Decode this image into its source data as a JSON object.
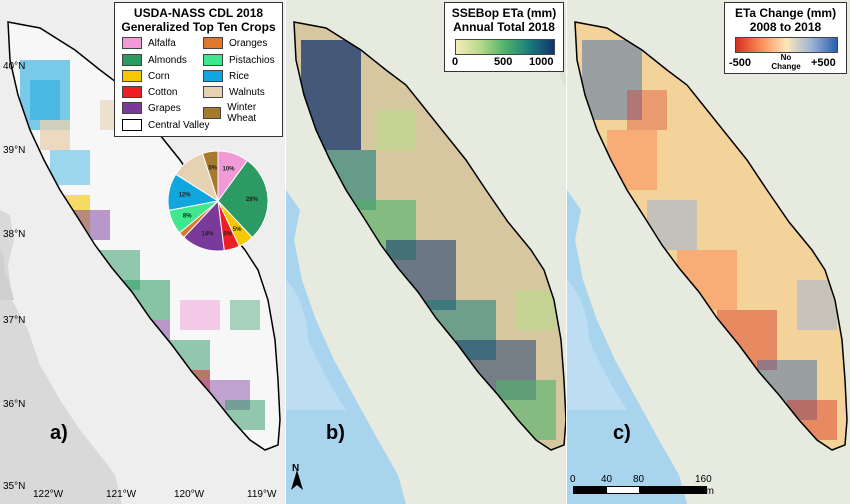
{
  "panels": {
    "a": {
      "label": "a)"
    },
    "b": {
      "label": "b)"
    },
    "c": {
      "label": "c)"
    }
  },
  "latitude_labels": [
    "40°N",
    "39°N",
    "38°N",
    "37°N",
    "36°N",
    "35°N"
  ],
  "longitude_labels": [
    "122°W",
    "121°W",
    "120°W",
    "119°W"
  ],
  "crop_legend": {
    "title_line1": "USDA-NASS CDL 2018",
    "title_line2": "Generalized Top Ten Crops",
    "items": [
      {
        "name": "Alfalfa",
        "color": "#f29ad8"
      },
      {
        "name": "Oranges",
        "color": "#e0772c"
      },
      {
        "name": "Almonds",
        "color": "#2c9a63"
      },
      {
        "name": "Pistachios",
        "color": "#3fe88f"
      },
      {
        "name": "Corn",
        "color": "#f5c800"
      },
      {
        "name": "Rice",
        "color": "#12a6de"
      },
      {
        "name": "Cotton",
        "color": "#ed1f24"
      },
      {
        "name": "Walnuts",
        "color": "#e7d1b3"
      },
      {
        "name": "Grapes",
        "color": "#7a3a99"
      },
      {
        "name": "Winter Wheat",
        "color": "#a67a2d"
      }
    ],
    "boundary_label": "Central Valley"
  },
  "pie_slices": [
    {
      "crop": "Alfalfa",
      "percent": 10,
      "label": "10%",
      "color": "#f29ad8"
    },
    {
      "crop": "Almonds",
      "percent": 28,
      "label": "28%",
      "color": "#2c9a63"
    },
    {
      "crop": "Corn",
      "percent": 5,
      "label": "5%",
      "color": "#f5c800"
    },
    {
      "crop": "Cotton",
      "percent": 5,
      "label": "5%",
      "color": "#ed1f24"
    },
    {
      "crop": "Grapes",
      "percent": 14,
      "label": "14%",
      "color": "#7a3a99"
    },
    {
      "crop": "Oranges",
      "percent": 2,
      "label": "",
      "color": "#e0772c"
    },
    {
      "crop": "Pistachios",
      "percent": 8,
      "label": "8%",
      "color": "#3fe88f"
    },
    {
      "crop": "Rice",
      "percent": 12,
      "label": "12%",
      "color": "#12a6de"
    },
    {
      "crop": "Walnuts",
      "percent": 11,
      "label": "",
      "color": "#e7d1b3"
    },
    {
      "crop": "Winter Wheat",
      "percent": 5,
      "label": "5%",
      "color": "#a67a2d"
    }
  ],
  "eta_legend": {
    "title_line1": "SSEBop ETa (mm)",
    "title_line2": "Annual Total 2018",
    "tick_min": "0",
    "tick_mid": "500",
    "tick_max": "1000",
    "ramp_colors": [
      "#f4ebb8",
      "#b7d98a",
      "#4fb36b",
      "#1a7c7a",
      "#13346e"
    ]
  },
  "change_legend": {
    "title_line1": "ETa Change (mm)",
    "title_line2": "2008 to 2018",
    "tick_min": "-500",
    "tick_mid": "No Change",
    "tick_max": "+500",
    "ramp_colors": [
      "#d7301f",
      "#fc8d59",
      "#fee8b8",
      "#9ab3d6",
      "#2c5fae"
    ]
  },
  "north_arrow": {
    "letter": "N"
  },
  "scale_bar": {
    "ticks": [
      "0",
      "40",
      "80",
      "160"
    ],
    "unit": "Km"
  }
}
